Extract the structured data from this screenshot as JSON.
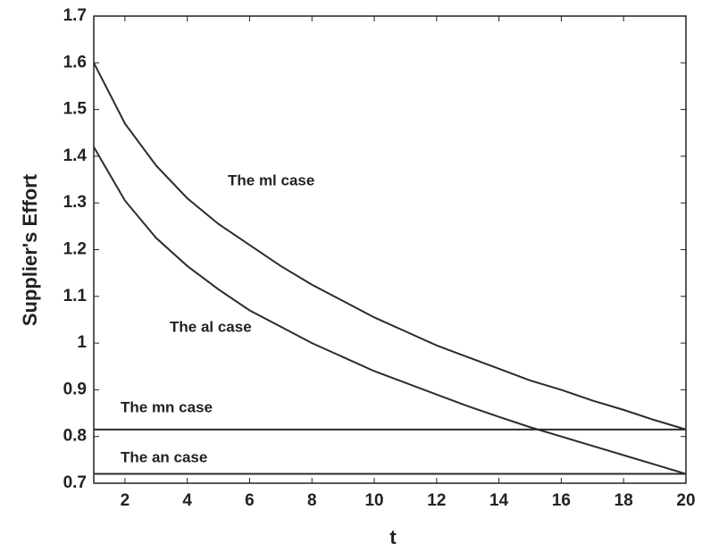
{
  "chart_data": {
    "type": "line",
    "xlabel": "t",
    "ylabel": "Supplier's Effort",
    "x": [
      1,
      2,
      3,
      4,
      5,
      6,
      7,
      8,
      9,
      10,
      11,
      12,
      13,
      14,
      15,
      16,
      17,
      18,
      19,
      20
    ],
    "series": [
      {
        "name": "The ml case",
        "color": "#2b2b2b",
        "values": [
          1.6,
          1.47,
          1.38,
          1.31,
          1.255,
          1.21,
          1.165,
          1.125,
          1.09,
          1.055,
          1.025,
          0.995,
          0.97,
          0.945,
          0.92,
          0.9,
          0.877,
          0.857,
          0.835,
          0.815
        ]
      },
      {
        "name": "The al case",
        "color": "#2b2b2b",
        "values": [
          1.42,
          1.305,
          1.225,
          1.165,
          1.115,
          1.07,
          1.035,
          1.0,
          0.97,
          0.94,
          0.915,
          0.89,
          0.865,
          0.842,
          0.82,
          0.8,
          0.78,
          0.76,
          0.74,
          0.72
        ]
      },
      {
        "name": "The mn case",
        "color": "#2b2b2b",
        "values": [
          0.815,
          0.815,
          0.815,
          0.815,
          0.815,
          0.815,
          0.815,
          0.815,
          0.815,
          0.815,
          0.815,
          0.815,
          0.815,
          0.815,
          0.815,
          0.815,
          0.815,
          0.815,
          0.815,
          0.815
        ]
      },
      {
        "name": "The an case",
        "color": "#2b2b2b",
        "values": [
          0.72,
          0.72,
          0.72,
          0.72,
          0.72,
          0.72,
          0.72,
          0.72,
          0.72,
          0.72,
          0.72,
          0.72,
          0.72,
          0.72,
          0.72,
          0.72,
          0.72,
          0.72,
          0.72,
          0.72
        ]
      }
    ],
    "xlim": [
      1,
      20
    ],
    "xticks": [
      2,
      4,
      6,
      8,
      10,
      12,
      14,
      16,
      18,
      20
    ],
    "ylim": [
      0.7,
      1.7
    ],
    "yticks": [
      0.7,
      0.8,
      0.9,
      1,
      1.1,
      1.2,
      1.3,
      1.4,
      1.5,
      1.6,
      1.7
    ],
    "grid": false
  }
}
